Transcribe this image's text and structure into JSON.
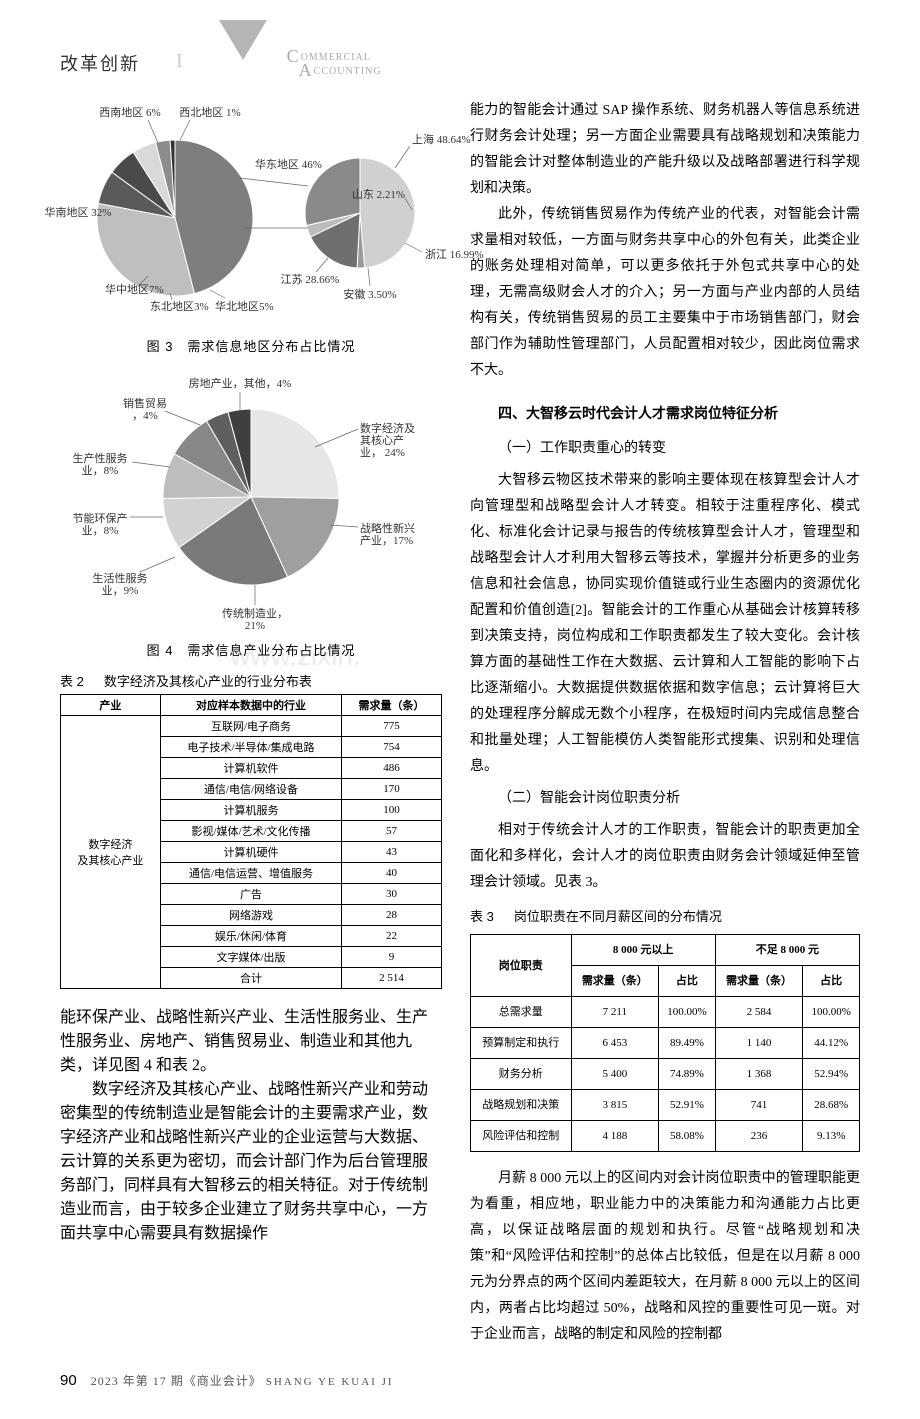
{
  "header": {
    "section": "改革创新",
    "journal_en_line1_cap": "C",
    "journal_en_line1_rest": "OMMERCIAL",
    "journal_en_line2_cap": "A",
    "journal_en_line2_rest": "CCOUNTING"
  },
  "fig3": {
    "caption": "图 3　需求信息地区分布占比情况",
    "type": "pie-pair",
    "left_pie": {
      "slices": [
        {
          "label": "华东地区",
          "value": 46,
          "color": "#7e7e7e"
        },
        {
          "label": "华南地区",
          "value": 32,
          "color": "#bfbfbf"
        },
        {
          "label": "华中地区",
          "value": 7,
          "color": "#5a5a5a"
        },
        {
          "label": "西南地区",
          "value": 6,
          "color": "#4a4a4a"
        },
        {
          "label": "华北地区",
          "value": 5,
          "color": "#d9d9d9"
        },
        {
          "label": "东北地区",
          "value": 3,
          "color": "#8c8c8c"
        },
        {
          "label": "西北地区",
          "value": 1,
          "color": "#333333"
        }
      ],
      "labels": {
        "xnw": "西南地区 6%",
        "xb": "西北地区 1%",
        "hd": "华东地区 46%",
        "hn": "华南地区 32%",
        "hz": "华中地区7%",
        "db": "东北地区3%",
        "hb": "华北地区5%"
      }
    },
    "right_pie": {
      "slices": [
        {
          "label": "上海",
          "value": 48.64,
          "color": "#d0d0d0"
        },
        {
          "label": "山东",
          "value": 2.21,
          "color": "#9a9a9a"
        },
        {
          "label": "浙江",
          "value": 16.99,
          "color": "#6f6f6f"
        },
        {
          "label": "安徽",
          "value": 3.5,
          "color": "#bcbcbc"
        },
        {
          "label": "江苏",
          "value": 28.66,
          "color": "#8a8a8a"
        }
      ],
      "labels": {
        "sh": "上海 48.64%",
        "sd": "山东 2.21%",
        "zj": "浙江 16.99%",
        "ah": "安徽 3.50%",
        "js": "江苏 28.66%"
      }
    }
  },
  "fig4": {
    "caption": "图 4　需求信息产业分布占比情况",
    "type": "pie",
    "slices": [
      {
        "label": "数字经济及其核心产业",
        "value": 24,
        "color": "#e6e6e6"
      },
      {
        "label": "战略性新兴产业",
        "value": 17,
        "color": "#9f9f9f"
      },
      {
        "label": "传统制造业",
        "value": 21,
        "color": "#7a7a7a"
      },
      {
        "label": "生活性服务业",
        "value": 9,
        "color": "#d2d2d2"
      },
      {
        "label": "节能环保产业",
        "value": 8,
        "color": "#bdbdbd"
      },
      {
        "label": "生产性服务业",
        "value": 8,
        "color": "#888888"
      },
      {
        "label": "销售贸易",
        "value": 4,
        "color": "#5f5f5f"
      },
      {
        "label": "房地产业, 其他",
        "value": 4,
        "color": "#3f3f3f"
      }
    ],
    "labels": {
      "dig": "数字经济及\n其核心产\n业， 24%",
      "stg": "战略性新兴\n产业，17%",
      "mfg": "传统制造业，\n21%",
      "life": "生活性服务\n业，9%",
      "env": "节能环保产\n业，8%",
      "prod": "生产性服务\n业，8%",
      "sale": "销售贸易\n，4%",
      "real": "房地产业，其他，4%"
    }
  },
  "table2": {
    "num": "表 2",
    "title": "数字经济及其核心产业的行业分布表",
    "cols": [
      "产业",
      "对应样本数据中的行业",
      "需求量（条）"
    ],
    "group_label": "数字经济\n及其核心产业",
    "rows": [
      [
        "互联网/电子商务",
        "775"
      ],
      [
        "电子技术/半导体/集成电路",
        "754"
      ],
      [
        "计算机软件",
        "486"
      ],
      [
        "通信/电信/网络设备",
        "170"
      ],
      [
        "计算机服务",
        "100"
      ],
      [
        "影视/媒体/艺术/文化传播",
        "57"
      ],
      [
        "计算机硬件",
        "43"
      ],
      [
        "通信/电信运营、增值服务",
        "40"
      ],
      [
        "广告",
        "30"
      ],
      [
        "网络游戏",
        "28"
      ],
      [
        "娱乐/休闲/体育",
        "22"
      ],
      [
        "文字媒体/出版",
        "9"
      ],
      [
        "合计",
        "2 514"
      ]
    ]
  },
  "left_body": {
    "p1": "能环保产业、战略性新兴产业、生活性服务业、生产性服务业、房地产、销售贸易业、制造业和其他九类，详见图 4 和表 2。",
    "p2": "数字经济及其核心产业、战略性新兴产业和劳动密集型的传统制造业是智能会计的主要需求产业，数字经济产业和战略性新兴产业的企业运营与大数据、云计算的关系更为密切，而会计部门作为后台管理服务部门，同样具有大智移云的相关特征。对于传统制造业而言，由于较多企业建立了财务共享中心，一方面共享中心需要具有数据操作"
  },
  "right_body": {
    "p1": "能力的智能会计通过 SAP 操作系统、财务机器人等信息系统进行财务会计处理；另一方面企业需要具有战略规划和决策能力的智能会计对整体制造业的产能升级以及战略部署进行科学规划和决策。",
    "p2": "此外，传统销售贸易作为传统产业的代表，对智能会计需求量相对较低，一方面与财务共享中心的外包有关，此类企业的账务处理相对简单，可以更多依托于外包式共享中心的处理，无需高级财会人才的介入；另一方面与产业内部的人员结构有关，传统销售贸易的员工主要集中于市场销售部门，财会部门作为辅助性管理部门，人员配置相对较少，因此岗位需求不大。",
    "h4": "四、大智移云时代会计人才需求岗位特征分析",
    "sub1": "（一）工作职责重心的转变",
    "p3": "大智移云物区技术带来的影响主要体现在核算型会计人才向管理型和战略型会计人才转变。相较于注重程序化、模式化、标准化会计记录与报告的传统核算型会计人才，管理型和战略型会计人才利用大智移云等技术，掌握并分析更多的业务信息和社会信息，协同实现价值链或行业生态圈内的资源优化配置和价值创造[2]。智能会计的工作重心从基础会计核算转移到决策支持，岗位构成和工作职责都发生了较大变化。会计核算方面的基础性工作在大数据、云计算和人工智能的影响下占比逐渐缩小。大数据提供数据依据和数字信息；云计算将巨大的处理程序分解成无数个小程序，在极短时间内完成信息整合和批量处理；人工智能模仿人类智能形式搜集、识别和处理信息。",
    "sub2": "（二）智能会计岗位职责分析",
    "p4": "相对于传统会计人才的工作职责，智能会计的职责更加全面化和多样化，会计人才的岗位职责由财务会计领域延伸至管理会计领域。见表 3。",
    "p5": "月薪 8 000 元以上的区间内对会计岗位职责中的管理职能更为看重，相应地，职业能力中的决策能力和沟通能力占比更高，以保证战略层面的规划和执行。尽管“战略规划和决策”和“风险评估和控制”的总体占比较低，但是在以月薪 8 000 元为分界点的两个区间内差距较大，在月薪 8 000 元以上的区间内，两者占比均超过 50%，战略和风控的重要性可见一斑。对于企业而言，战略的制定和风险的控制都"
  },
  "table3": {
    "num": "表 3",
    "title": "岗位职责在不同月薪区间的分布情况",
    "head_top": [
      "岗位职责",
      "8 000 元以上",
      "不足 8 000 元"
    ],
    "head_sub": [
      "需求量（条）",
      "占比",
      "需求量（条）",
      "占比"
    ],
    "rows": [
      [
        "总需求量",
        "7 211",
        "100.00%",
        "2 584",
        "100.00%"
      ],
      [
        "预算制定和执行",
        "6 453",
        "89.49%",
        "1 140",
        "44.12%"
      ],
      [
        "财务分析",
        "5 400",
        "74.89%",
        "1 368",
        "52.94%"
      ],
      [
        "战略规划和决策",
        "3 815",
        "52.91%",
        "741",
        "28.68%"
      ],
      [
        "风险评估和控制",
        "4 188",
        "58.08%",
        "236",
        "9.13%"
      ]
    ]
  },
  "footer": {
    "page": "90",
    "issue": "2023 年第 17 期《商业会计》",
    "pinyin": "SHANG YE KUAI JI"
  },
  "watermark": "www.zixin."
}
